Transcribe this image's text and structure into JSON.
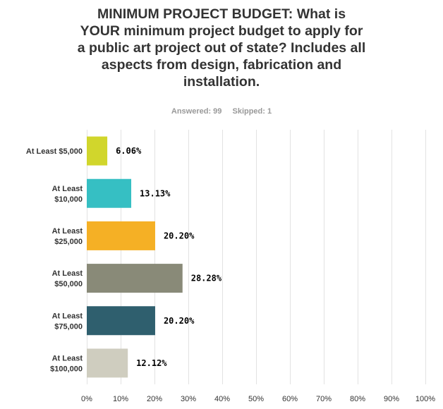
{
  "question": {
    "title": "MINIMUM PROJECT BUDGET: What is\nYOUR minimum project budget to apply for\na public art project out of state? Includes all\naspects from design, fabrication and\ninstallation.",
    "answered": "Answered: 99",
    "skipped": "Skipped: 1"
  },
  "chart_data": {
    "type": "bar",
    "orientation": "horizontal",
    "categories": [
      "At Least $5,000",
      "At Least $10,000",
      "At Least $25,000",
      "At Least $50,000",
      "At Least $75,000",
      "At Least $100,000"
    ],
    "category_lines": [
      [
        "At Least $5,000"
      ],
      [
        "At Least",
        "$10,000"
      ],
      [
        "At Least",
        "$25,000"
      ],
      [
        "At Least",
        "$50,000"
      ],
      [
        "At Least",
        "$75,000"
      ],
      [
        "At Least",
        "$100,000"
      ]
    ],
    "values": [
      6.06,
      13.13,
      20.2,
      28.28,
      20.2,
      12.12
    ],
    "value_labels": [
      "6.06%",
      "13.13%",
      "20.20%",
      "28.28%",
      "20.20%",
      "12.12%"
    ],
    "colors": [
      "#d1d62c",
      "#36bfc3",
      "#f5b025",
      "#898a78",
      "#2f5f6e",
      "#cfcdbf"
    ],
    "xlim": [
      0,
      100
    ],
    "xticks": [
      "0%",
      "10%",
      "20%",
      "30%",
      "40%",
      "50%",
      "60%",
      "70%",
      "80%",
      "90%",
      "100%"
    ],
    "grid": true,
    "gridline_color": "#e2e2e2"
  }
}
